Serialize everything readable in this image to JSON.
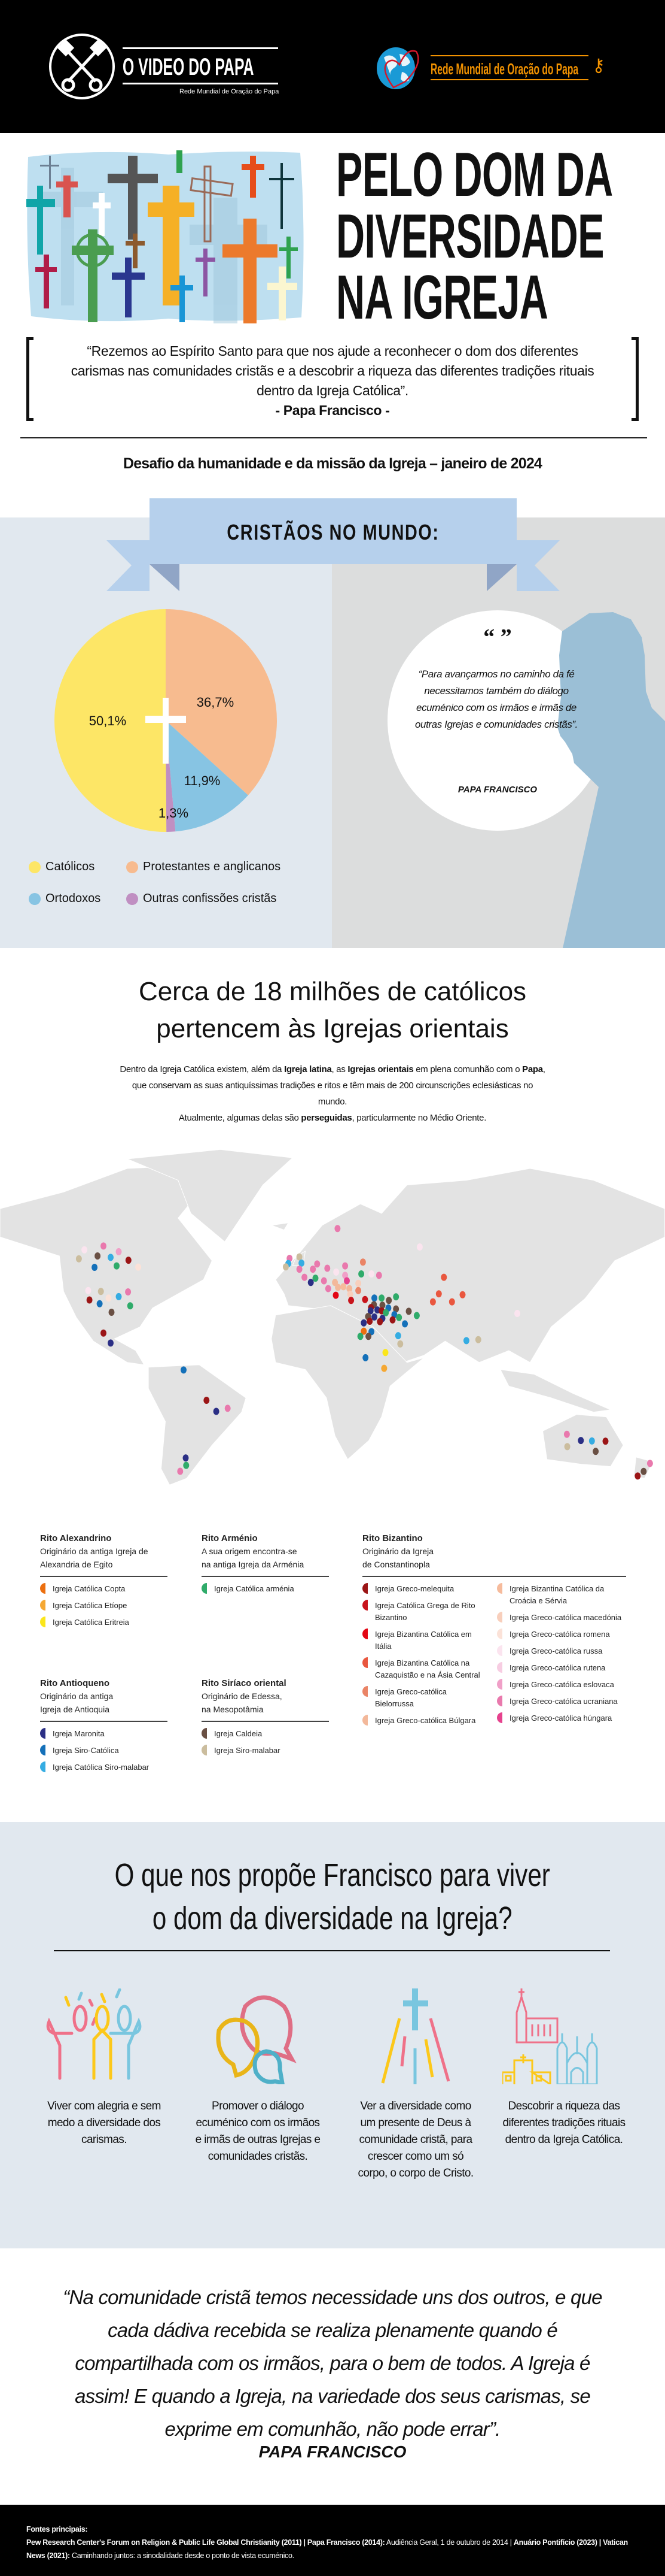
{
  "header": {
    "left_logo_title": "O VIDEO DO PAPA",
    "left_logo_subtitle": "Rede Mundial de Oração do Papa",
    "right_logo_text": "Rede Mundial de Oração do Papa",
    "brand_orange": "#f29200"
  },
  "hero": {
    "title_lines": [
      "PELO DOM DA",
      "DIVERSIDADE",
      "NA IGREJA"
    ],
    "quote": "“Rezemos ao Espírito Santo para que nos ajude a reconhecer o dom dos diferentes carismas nas comunidades cristãs e a descobrir a riqueza das diferentes tradições rituais dentro da Igreja Católica”.",
    "quote_author": "- Papa Francisco -",
    "subtitle": "Desafio da humanidade e da missão da Igreja – janeiro de 2024"
  },
  "christians": {
    "banner": "CRISTÃOS NO MUNDO:",
    "quote_marks": "“ ”",
    "quote": "“Para avançarmos no caminho da fé necessitamos também do diálogo ecuménico com os irmãos e irmãs de outras Igrejas e comunidades cristãs”.",
    "quote_author": "PAPA FRANCISCO"
  },
  "chart_data": {
    "type": "pie",
    "categories": [
      "Católicos",
      "Protestantes e anglicanos",
      "Ortodoxos",
      "Outras confissões cristãs"
    ],
    "values": [
      50.1,
      36.7,
      11.9,
      1.3
    ],
    "labels": [
      "50,1%",
      "36,7%",
      "11,9%",
      "1,3%"
    ],
    "colors": [
      "#fde666",
      "#f7bb8f",
      "#87c4e3",
      "#c08fc2"
    ],
    "legend": "bottom"
  },
  "eastern": {
    "heading_lines": [
      "Cerca de 18 milhões de católicos",
      "pertencem às Igrejas orientais"
    ],
    "paragraph": [
      {
        "t": "Dentro da Igreja Católica existem, além da "
      },
      {
        "t": "Igreja latina",
        "b": true
      },
      {
        "t": ", as "
      },
      {
        "t": "Igrejas orientais",
        "b": true
      },
      {
        "t": " em plena comunhão com o "
      },
      {
        "t": "Papa",
        "b": true
      },
      {
        "t": ", que conservam as suas antiquíssimas tradições e ritos e têm mais de 200 circunscrições eclesiásticas no mundo."
      }
    ],
    "paragraph2": [
      {
        "t": "Atualmente, algumas delas são "
      },
      {
        "t": "perseguidas",
        "b": true
      },
      {
        "t": ", particularmente no Médio Oriente."
      }
    ]
  },
  "rites": [
    {
      "title": "Rito Alexandrino",
      "desc": [
        "Originário da antiga Igreja de",
        "Alexandria de Egito"
      ],
      "items": [
        {
          "key": "copta",
          "name": "Igreja Católica Copta",
          "color": "#ec6f0f"
        },
        {
          "key": "etiope",
          "name": "Igreja Católica Etíope",
          "color": "#f5a833"
        },
        {
          "key": "eritreia",
          "name": "Igreja Católica Eritreia",
          "color": "#fbe61b"
        }
      ]
    },
    {
      "title": "Rito Arménio",
      "desc": [
        "A sua origem encontra-se",
        "na antiga Igreja da Arménia"
      ],
      "items": [
        {
          "key": "armenia",
          "name": "Igreja Católica arménia",
          "color": "#2fab6a"
        }
      ]
    },
    {
      "title": "Rito Bizantino",
      "desc": [
        "Originário da Igreja",
        "de Constantinopla"
      ],
      "items": [
        {
          "key": "melequita",
          "name": "Igreja Greco-melequita",
          "color": "#9b1516"
        },
        {
          "key": "grega",
          "name": "Igreja Católica Grega de Rito Bizantino",
          "color": "#c8141c"
        },
        {
          "key": "italia",
          "name": "Igreja Bizantina Católica em Itália",
          "color": "#e30613"
        },
        {
          "key": "cazaquistao",
          "name": "Igreja Bizantina Católica na Cazaquistão e na Ásia Central",
          "color": "#e9573f"
        },
        {
          "key": "bielorrussa",
          "name": "Igreja Greco-católica Bielorrussa",
          "color": "#ea8466"
        },
        {
          "key": "bulgara",
          "name": "Igreja Greco-católica Búlgara",
          "color": "#f3b89a"
        },
        {
          "key": "croacia",
          "name": "Igreja Bizantina Católica da Croácia e Sérvia",
          "color": "#f6bb9c"
        },
        {
          "key": "macedonia",
          "name": "Igreja Greco-católica macedónia",
          "color": "#f8cfbc"
        },
        {
          "key": "romena",
          "name": "Igreja Greco-católica romena",
          "color": "#fbe2d8"
        },
        {
          "key": "russa",
          "name": "Igreja Greco-católica russa",
          "color": "#fbe4ef"
        },
        {
          "key": "rutena",
          "name": "Igreja Greco-católica rutena",
          "color": "#f7cde2"
        },
        {
          "key": "eslovaca",
          "name": "Igreja Greco-católica eslovaca",
          "color": "#f0a0c8"
        },
        {
          "key": "ucraniana",
          "name": "Igreja Greco-católica ucraniana",
          "color": "#e979ad"
        },
        {
          "key": "hungara",
          "name": "Igreja Greco-católica húngara",
          "color": "#e6428e"
        }
      ]
    },
    {
      "title": "Rito Antioqueno",
      "desc": [
        "Originário da antiga",
        "Igreja de Antioquia"
      ],
      "items": [
        {
          "key": "maronita",
          "name": "Igreja Maronita",
          "color": "#2b2f85"
        },
        {
          "key": "sirocatolica",
          "name": "Igreja Siro-Católica",
          "color": "#1470b9"
        },
        {
          "key": "siromalabarcat",
          "name": "Igreja Católica Siro-malabar",
          "color": "#35ace2"
        }
      ]
    },
    {
      "title": "Rito Siríaco oriental",
      "desc": [
        "Originário de Edessa,",
        "na Mesopotâmia"
      ],
      "items": [
        {
          "key": "caldeia",
          "name": "Igreja Caldeia",
          "color": "#6a5044"
        },
        {
          "key": "siromalabar",
          "name": "Igreja Siro-malabar",
          "color": "#cbbd9e"
        }
      ]
    }
  ],
  "proposals": {
    "heading_lines": [
      "O que nos propõe Francisco para viver",
      "o dom da diversidade na Igreja?"
    ],
    "items": [
      {
        "icon": "people-celebrating-icon",
        "text": "Viver com alegria e sem medo a diversidade dos carismas."
      },
      {
        "icon": "speech-bubbles-icon",
        "text": "Promover o diálogo ecuménico com os irmãos e irmãs de outras Igrejas e comunidades cristãs."
      },
      {
        "icon": "cross-rays-icon",
        "text": "Ver a diversidade como um presente de Deus à comunidade cristã, para crescer como um só corpo, o corpo de Cristo."
      },
      {
        "icon": "churches-icon",
        "text": "Descobrir a riqueza das diferentes tradições rituais dentro da Igreja Católica."
      }
    ],
    "icon_colors": [
      "#ef7189",
      "#fcc81a",
      "#79c6df"
    ]
  },
  "final_quote": {
    "text": "“Na comunidade cristã temos necessidade uns dos outros, e que cada dádiva recebida se realiza plenamente quando é compartilhada com os irmãos, para o bem de todos. A Igreja é assim! E quando a Igreja, na variedade dos seus carismas, se exprime em comunhão, não pode errar”.",
    "author": "PAPA FRANCISCO"
  },
  "footer": {
    "label": "Fontes principais:",
    "sources": [
      {
        "t": "Pew Research Center's Forum on Religion & Public Life Global Christianity (2011) | Papa Francisco (2014):",
        "b": true
      },
      {
        "t": " Audiência Geral, 1 de outubro de 2014 | "
      },
      {
        "t": "Anuário Pontifício (2023) | Vatican News (2021):",
        "b": true
      },
      {
        "t": " Caminhando juntos: a sinodalidade desde o ponto de vista ecuménico."
      }
    ]
  }
}
